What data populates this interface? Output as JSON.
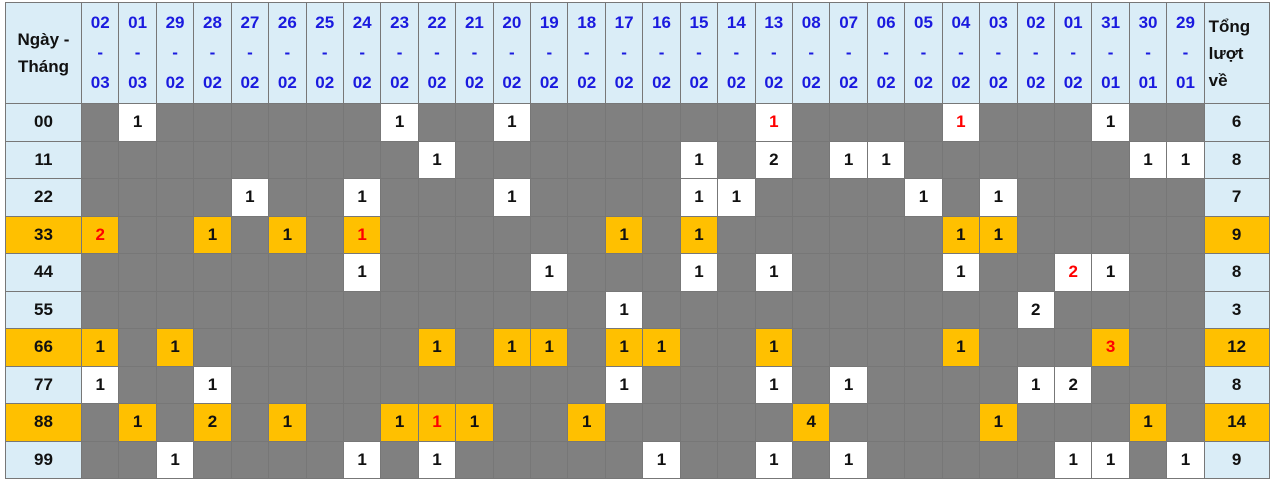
{
  "header": {
    "label_line1": "Ngày -",
    "label_line2": "Tháng",
    "total_line1": "Tổng",
    "total_line2": "lượt",
    "total_line3": "về",
    "dates": [
      [
        "02",
        "03"
      ],
      [
        "01",
        "03"
      ],
      [
        "29",
        "02"
      ],
      [
        "28",
        "02"
      ],
      [
        "27",
        "02"
      ],
      [
        "26",
        "02"
      ],
      [
        "25",
        "02"
      ],
      [
        "24",
        "02"
      ],
      [
        "23",
        "02"
      ],
      [
        "22",
        "02"
      ],
      [
        "21",
        "02"
      ],
      [
        "20",
        "02"
      ],
      [
        "19",
        "02"
      ],
      [
        "18",
        "02"
      ],
      [
        "17",
        "02"
      ],
      [
        "16",
        "02"
      ],
      [
        "15",
        "02"
      ],
      [
        "14",
        "02"
      ],
      [
        "13",
        "02"
      ],
      [
        "08",
        "02"
      ],
      [
        "07",
        "02"
      ],
      [
        "06",
        "02"
      ],
      [
        "05",
        "02"
      ],
      [
        "04",
        "02"
      ],
      [
        "03",
        "02"
      ],
      [
        "02",
        "02"
      ],
      [
        "01",
        "02"
      ],
      [
        "31",
        "01"
      ],
      [
        "30",
        "01"
      ],
      [
        "29",
        "01"
      ]
    ]
  },
  "colors": {
    "header_bg": "#daedf7",
    "empty": "#808080",
    "hit": "#ffffff",
    "highlight": "#ffc000",
    "date_text": "#1a1adf",
    "red_text": "#ff0000"
  },
  "rows": [
    {
      "number": "00",
      "total": "6",
      "highlight": false,
      "cells": [
        "",
        "1",
        "",
        "",
        "",
        "",
        "",
        "",
        "1",
        "",
        "",
        "1",
        "",
        "",
        "",
        "",
        "",
        "",
        "1",
        "",
        "",
        "",
        "",
        "1",
        "",
        "",
        "",
        "1",
        "",
        ""
      ],
      "red": [
        18,
        23
      ]
    },
    {
      "number": "11",
      "total": "8",
      "highlight": false,
      "cells": [
        "",
        "",
        "",
        "",
        "",
        "",
        "",
        "",
        "",
        "1",
        "",
        "",
        "",
        "",
        "",
        "",
        "1",
        "",
        "2",
        "",
        "1",
        "1",
        "",
        "",
        "",
        "",
        "",
        "",
        "1",
        "1"
      ],
      "red": []
    },
    {
      "number": "22",
      "total": "7",
      "highlight": false,
      "cells": [
        "",
        "",
        "",
        "",
        "1",
        "",
        "",
        "1",
        "",
        "",
        "",
        "1",
        "",
        "",
        "",
        "",
        "1",
        "1",
        "",
        "",
        "",
        "",
        "1",
        "",
        "1",
        "",
        "",
        "",
        "",
        ""
      ],
      "red": []
    },
    {
      "number": "33",
      "total": "9",
      "highlight": true,
      "cells": [
        "2",
        "",
        "",
        "1",
        "",
        "1",
        "",
        "1",
        "",
        "",
        "",
        "",
        "",
        "",
        "1",
        "",
        "1",
        "",
        "",
        "",
        "",
        "",
        "",
        "1",
        "1",
        "",
        "",
        "",
        "",
        ""
      ],
      "red": [
        0,
        7
      ]
    },
    {
      "number": "44",
      "total": "8",
      "highlight": false,
      "cells": [
        "",
        "",
        "",
        "",
        "",
        "",
        "",
        "1",
        "",
        "",
        "",
        "",
        "1",
        "",
        "",
        "",
        "1",
        "",
        "1",
        "",
        "",
        "",
        "",
        "1",
        "",
        "",
        "2",
        "1",
        "",
        ""
      ],
      "red": [
        26
      ]
    },
    {
      "number": "55",
      "total": "3",
      "highlight": false,
      "cells": [
        "",
        "",
        "",
        "",
        "",
        "",
        "",
        "",
        "",
        "",
        "",
        "",
        "",
        "",
        "1",
        "",
        "",
        "",
        "",
        "",
        "",
        "",
        "",
        "",
        "",
        "2",
        "",
        "",
        "",
        ""
      ],
      "red": []
    },
    {
      "number": "66",
      "total": "12",
      "highlight": true,
      "cells": [
        "1",
        "",
        "1",
        "",
        "",
        "",
        "",
        "",
        "",
        "1",
        "",
        "1",
        "1",
        "",
        "1",
        "1",
        "",
        "",
        "1",
        "",
        "",
        "",
        "",
        "1",
        "",
        "",
        "",
        "3",
        "",
        ""
      ],
      "red": [
        27
      ]
    },
    {
      "number": "77",
      "total": "8",
      "highlight": false,
      "cells": [
        "1",
        "",
        "",
        "1",
        "",
        "",
        "",
        "",
        "",
        "",
        "",
        "",
        "",
        "",
        "1",
        "",
        "",
        "",
        "1",
        "",
        "1",
        "",
        "",
        "",
        "",
        "1",
        "2",
        "",
        "",
        ""
      ],
      "red": []
    },
    {
      "number": "88",
      "total": "14",
      "highlight": true,
      "cells": [
        "",
        "1",
        "",
        "2",
        "",
        "1",
        "",
        "",
        "1",
        "1",
        "1",
        "",
        "",
        "1",
        "",
        "",
        "",
        "",
        "",
        "4",
        "",
        "",
        "",
        "",
        "1",
        "",
        "",
        "",
        "1",
        ""
      ],
      "red": [
        9
      ]
    },
    {
      "number": "99",
      "total": "9",
      "highlight": false,
      "cells": [
        "",
        "",
        "1",
        "",
        "",
        "",
        "",
        "1",
        "",
        "1",
        "",
        "",
        "",
        "",
        "",
        "1",
        "",
        "",
        "1",
        "",
        "1",
        "",
        "",
        "",
        "",
        "",
        "1",
        "1",
        "",
        "1"
      ],
      "red": []
    }
  ]
}
